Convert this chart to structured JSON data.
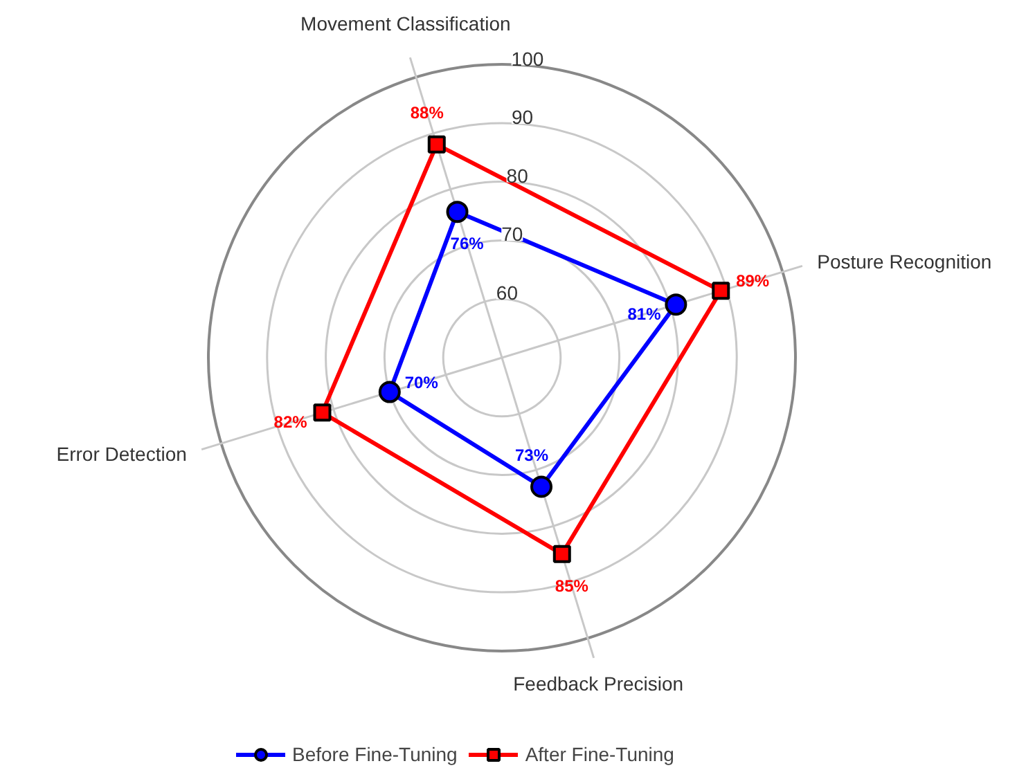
{
  "chart_data": {
    "type": "radar",
    "categories": [
      "Movement Classification",
      "Posture Recognition",
      "Feedback Precision",
      "Error Detection"
    ],
    "ylim": [
      50,
      100
    ],
    "yticks": [
      60,
      70,
      80,
      90,
      100
    ],
    "grid": true,
    "legend": "bottom",
    "series": [
      {
        "name": "Before Fine-Tuning",
        "color": "#0000ff",
        "marker": "circle",
        "values": [
          76,
          81,
          73,
          70
        ],
        "value_labels": [
          "76%",
          "81%",
          "73%",
          "70%"
        ]
      },
      {
        "name": "After Fine-Tuning",
        "color": "#ff0000",
        "marker": "square",
        "values": [
          88,
          89,
          85,
          82
        ],
        "value_labels": [
          "88%",
          "89%",
          "85%",
          "82%"
        ]
      }
    ]
  }
}
